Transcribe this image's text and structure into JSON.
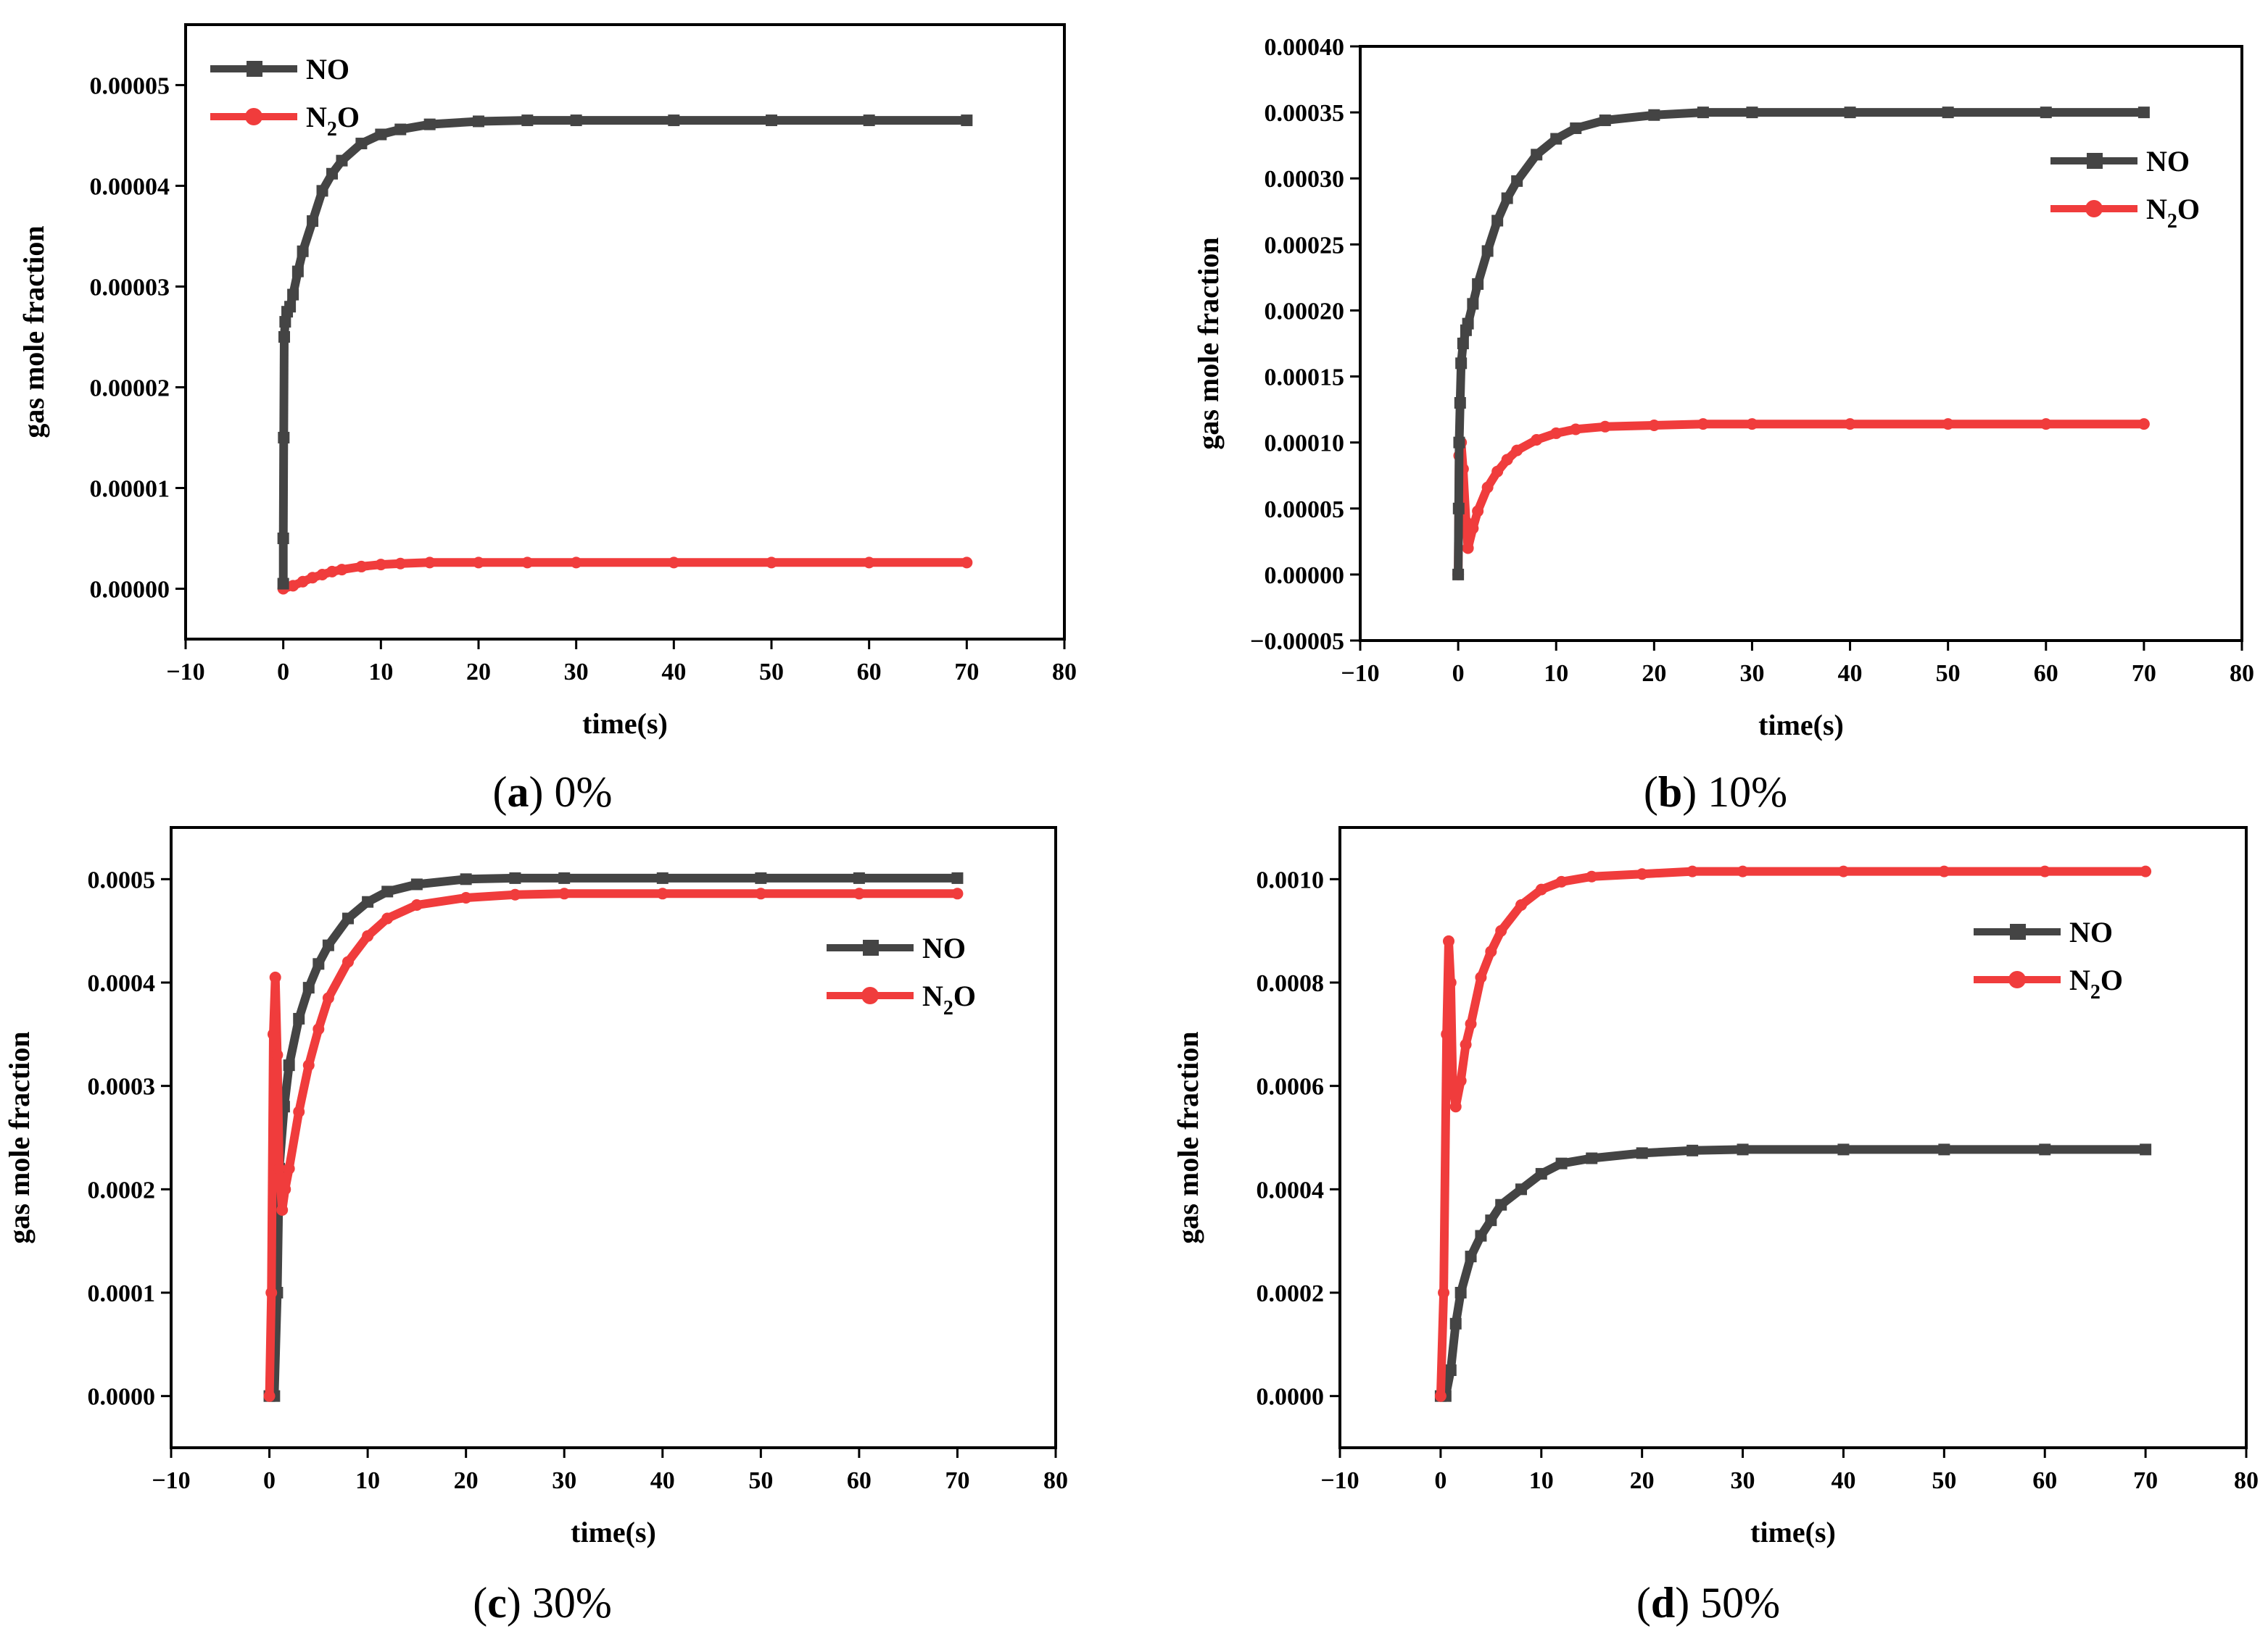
{
  "figure": {
    "panels": [
      {
        "caption": {
          "letter": "a",
          "text": "0%"
        }
      },
      {
        "caption": {
          "letter": "b",
          "text": "10%"
        }
      },
      {
        "caption": {
          "letter": "c",
          "text": "30%"
        }
      },
      {
        "caption": {
          "letter": "d",
          "text": "50%"
        }
      }
    ]
  },
  "colors": {
    "NO": "#444444",
    "N2O": "#f03c3c",
    "axis": "#000000"
  },
  "chart_data": [
    {
      "id": "a",
      "type": "line",
      "title": "",
      "xlabel": "time(s)",
      "ylabel": "gas mole fraction",
      "xlim": [
        -10,
        80
      ],
      "ylim": [
        -5e-06,
        5.6e-05
      ],
      "xticks": [
        -10,
        0,
        10,
        20,
        30,
        40,
        50,
        60,
        70,
        80
      ],
      "xtick_labels": [
        "−10",
        "0",
        "10",
        "20",
        "30",
        "40",
        "50",
        "60",
        "70",
        "80"
      ],
      "yticks": [
        0,
        1e-05,
        2e-05,
        3e-05,
        4e-05,
        5e-05
      ],
      "ytick_labels": [
        "0.00000",
        "0.00001",
        "0.00002",
        "0.00003",
        "0.00004",
        "0.00005"
      ],
      "legend_position": "top-left",
      "series": [
        {
          "key": "NO",
          "name": "NO",
          "marker": "square",
          "x": [
            0,
            0,
            0.05,
            0.1,
            0.2,
            0.4,
            0.7,
            1,
            1.5,
            2,
            3,
            4,
            5,
            6,
            8,
            10,
            12,
            15,
            20,
            25,
            30,
            40,
            50,
            60,
            70
          ],
          "y": [
            5e-07,
            5e-06,
            1.5e-05,
            2.5e-05,
            2.65e-05,
            2.75e-05,
            2.8e-05,
            2.92e-05,
            3.15e-05,
            3.35e-05,
            3.65e-05,
            3.95e-05,
            4.12e-05,
            4.25e-05,
            4.42e-05,
            4.51e-05,
            4.56e-05,
            4.61e-05,
            4.64e-05,
            4.65e-05,
            4.65e-05,
            4.65e-05,
            4.65e-05,
            4.65e-05,
            4.65e-05
          ]
        },
        {
          "key": "N2O",
          "name": "N₂O",
          "legend_main": "N",
          "legend_sub": "2",
          "legend_tail": "O",
          "marker": "circle",
          "x": [
            0,
            1,
            2,
            3,
            4,
            5,
            6,
            8,
            10,
            12,
            15,
            20,
            25,
            30,
            40,
            50,
            60,
            70
          ],
          "y": [
            0,
            3e-07,
            7e-07,
            1.1e-06,
            1.4e-06,
            1.7e-06,
            1.9e-06,
            2.2e-06,
            2.4e-06,
            2.5e-06,
            2.6e-06,
            2.6e-06,
            2.6e-06,
            2.6e-06,
            2.6e-06,
            2.6e-06,
            2.6e-06,
            2.6e-06
          ]
        }
      ]
    },
    {
      "id": "b",
      "type": "line",
      "title": "",
      "xlabel": "time(s)",
      "ylabel": "gas mole fraction",
      "xlim": [
        -10,
        80
      ],
      "ylim": [
        -5e-05,
        0.0004
      ],
      "xticks": [
        -10,
        0,
        10,
        20,
        30,
        40,
        50,
        60,
        70,
        80
      ],
      "xtick_labels": [
        "−10",
        "0",
        "10",
        "20",
        "30",
        "40",
        "50",
        "60",
        "70",
        "80"
      ],
      "yticks": [
        -5e-05,
        0,
        5e-05,
        0.0001,
        0.00015,
        0.0002,
        0.00025,
        0.0003,
        0.00035,
        0.0004
      ],
      "ytick_labels": [
        "−0.00005",
        "0.00000",
        "0.00005",
        "0.00010",
        "0.00015",
        "0.00020",
        "0.00025",
        "0.00030",
        "0.00035",
        "0.00040"
      ],
      "legend_position": "top-right",
      "series": [
        {
          "key": "NO",
          "name": "NO",
          "marker": "square",
          "x": [
            0,
            0.05,
            0.1,
            0.2,
            0.3,
            0.5,
            0.8,
            1,
            1.5,
            2,
            3,
            4,
            5,
            6,
            8,
            10,
            12,
            15,
            20,
            25,
            30,
            40,
            50,
            60,
            70
          ],
          "y": [
            0,
            5e-05,
            0.0001,
            0.00013,
            0.00016,
            0.000175,
            0.000185,
            0.00019,
            0.000205,
            0.00022,
            0.000245,
            0.000268,
            0.000285,
            0.000298,
            0.000318,
            0.00033,
            0.000338,
            0.000344,
            0.000348,
            0.00035,
            0.00035,
            0.00035,
            0.00035,
            0.00035,
            0.00035
          ]
        },
        {
          "key": "N2O",
          "name": "N₂O",
          "legend_main": "N",
          "legend_sub": "2",
          "legend_tail": "O",
          "marker": "circle",
          "x": [
            0,
            0.1,
            0.3,
            0.5,
            0.8,
            1,
            1.5,
            2,
            3,
            4,
            5,
            6,
            8,
            10,
            12,
            15,
            20,
            25,
            30,
            40,
            50,
            60,
            70
          ],
          "y": [
            0,
            9e-05,
            0.0001,
            8e-05,
            4e-05,
            2e-05,
            3.5e-05,
            4.8e-05,
            6.6e-05,
            7.8e-05,
            8.7e-05,
            9.4e-05,
            0.000102,
            0.000107,
            0.00011,
            0.000112,
            0.000113,
            0.000114,
            0.000114,
            0.000114,
            0.000114,
            0.000114,
            0.000114
          ]
        }
      ]
    },
    {
      "id": "c",
      "type": "line",
      "title": "",
      "xlabel": "time(s)",
      "ylabel": "gas mole fraction",
      "xlim": [
        -10,
        80
      ],
      "ylim": [
        -5e-05,
        0.00055
      ],
      "xticks": [
        -10,
        0,
        10,
        20,
        30,
        40,
        50,
        60,
        70,
        80
      ],
      "xtick_labels": [
        "−10",
        "0",
        "10",
        "20",
        "30",
        "40",
        "50",
        "60",
        "70",
        "80"
      ],
      "yticks": [
        0,
        0.0001,
        0.0002,
        0.0003,
        0.0004,
        0.0005
      ],
      "ytick_labels": [
        "0.0000",
        "0.0001",
        "0.0002",
        "0.0003",
        "0.0004",
        "0.0005"
      ],
      "legend_position": "top-right",
      "series": [
        {
          "key": "NO",
          "name": "NO",
          "marker": "square",
          "x": [
            0,
            0.5,
            0.8,
            1,
            1.5,
            2,
            3,
            4,
            5,
            6,
            8,
            10,
            12,
            15,
            20,
            25,
            30,
            40,
            50,
            60,
            70
          ],
          "y": [
            0,
            0,
            0.0001,
            0.00022,
            0.00028,
            0.00032,
            0.000365,
            0.000395,
            0.000418,
            0.000436,
            0.000462,
            0.000478,
            0.000488,
            0.000495,
            0.0005,
            0.000501,
            0.000501,
            0.000501,
            0.000501,
            0.000501,
            0.000501
          ]
        },
        {
          "key": "N2O",
          "name": "N₂O",
          "legend_main": "N",
          "legend_sub": "2",
          "legend_tail": "O",
          "marker": "circle",
          "x": [
            0,
            0.2,
            0.4,
            0.6,
            0.8,
            1,
            1.3,
            1.6,
            2,
            3,
            4,
            5,
            6,
            8,
            10,
            12,
            15,
            20,
            25,
            30,
            40,
            50,
            60,
            70
          ],
          "y": [
            0,
            0.0001,
            0.00035,
            0.000405,
            0.00033,
            0.00022,
            0.00018,
            0.0002,
            0.00022,
            0.000275,
            0.00032,
            0.000355,
            0.000385,
            0.00042,
            0.000445,
            0.000462,
            0.000475,
            0.000482,
            0.000485,
            0.000486,
            0.000486,
            0.000486,
            0.000486,
            0.000486
          ]
        }
      ]
    },
    {
      "id": "d",
      "type": "line",
      "title": "",
      "xlabel": "time(s)",
      "ylabel": "gas mole fraction",
      "xlim": [
        -10,
        80
      ],
      "ylim": [
        -0.0001,
        0.0011
      ],
      "xticks": [
        -10,
        0,
        10,
        20,
        30,
        40,
        50,
        60,
        70,
        80
      ],
      "xtick_labels": [
        "−10",
        "0",
        "10",
        "20",
        "30",
        "40",
        "50",
        "60",
        "70",
        "80"
      ],
      "yticks": [
        0,
        0.0002,
        0.0004,
        0.0006,
        0.0008,
        0.001
      ],
      "ytick_labels": [
        "0.0000",
        "0.0002",
        "0.0004",
        "0.0006",
        "0.0008",
        "0.0010"
      ],
      "legend_position": "top-right",
      "series": [
        {
          "key": "NO",
          "name": "NO",
          "marker": "square",
          "x": [
            0,
            0.5,
            1,
            1.5,
            2,
            3,
            4,
            5,
            6,
            8,
            10,
            12,
            15,
            20,
            25,
            30,
            40,
            50,
            60,
            70
          ],
          "y": [
            0,
            0,
            5e-05,
            0.00014,
            0.0002,
            0.00027,
            0.00031,
            0.00034,
            0.00037,
            0.0004,
            0.00043,
            0.00045,
            0.00046,
            0.00047,
            0.000475,
            0.000477,
            0.000477,
            0.000477,
            0.000477,
            0.000477
          ]
        },
        {
          "key": "N2O",
          "name": "N₂O",
          "legend_main": "N",
          "legend_sub": "2",
          "legend_tail": "O",
          "marker": "circle",
          "x": [
            0,
            0.3,
            0.6,
            0.8,
            1,
            1.2,
            1.5,
            2,
            2.5,
            3,
            4,
            5,
            6,
            8,
            10,
            12,
            15,
            20,
            25,
            30,
            40,
            50,
            60,
            70
          ],
          "y": [
            0,
            0.0002,
            0.0007,
            0.00088,
            0.0008,
            0.0006,
            0.00056,
            0.00061,
            0.00068,
            0.00072,
            0.00081,
            0.00086,
            0.0009,
            0.00095,
            0.00098,
            0.000995,
            0.001005,
            0.00101,
            0.001015,
            0.001015,
            0.001015,
            0.001015,
            0.001015,
            0.001015
          ]
        }
      ]
    }
  ]
}
